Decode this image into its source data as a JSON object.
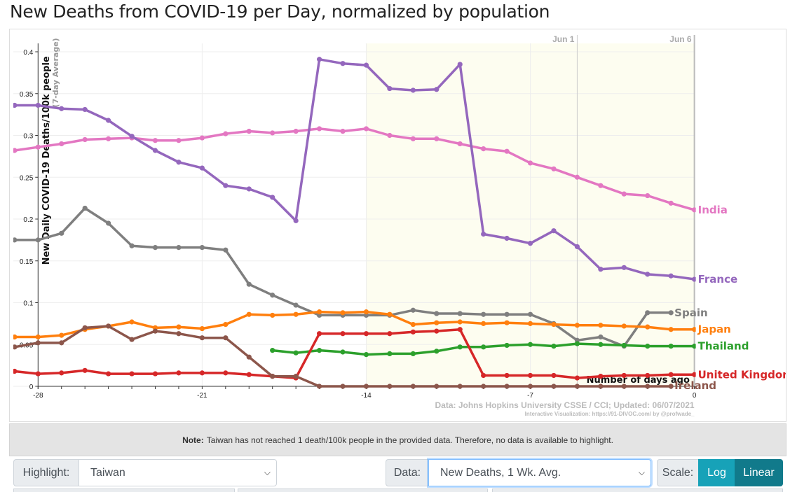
{
  "page": {
    "title": "New Deaths from COVID-19 per Day, normalized by population"
  },
  "chart_data": {
    "type": "line",
    "ylabel": "New Daily COVID-19 Deaths/100k people",
    "ylabel_sub": "(7-day Average)",
    "xlabel": "Number of days ago",
    "xlim": [
      -28,
      0
    ],
    "ylim": [
      0,
      0.4
    ],
    "x_ticks": [
      -28,
      -21,
      -14,
      -7,
      0
    ],
    "y_ticks": [
      0,
      0.05,
      0.1,
      0.15,
      0.2,
      0.25,
      0.3,
      0.35,
      0.4
    ],
    "y_tick_labels": [
      "0",
      "0.05",
      "0.1",
      "0.15",
      "0.2",
      "0.25",
      "0.3",
      "0.35",
      "0.4"
    ],
    "date_markers": [
      {
        "x": -5,
        "label": "Jun 1"
      },
      {
        "x": 0,
        "label": "Jun 6"
      }
    ],
    "highlight_region": [
      -14,
      0
    ],
    "source": "Data: Johns Hopkins University CSSE / CCI; Updated: 06/07/2021",
    "credit": "Interactive Visualization: https://91-DIVOC.com/ by @profwade_",
    "series": [
      {
        "name": "India",
        "color": "#e377c2",
        "x": [
          -29,
          -28,
          -27,
          -26,
          -25,
          -24,
          -23,
          -22,
          -21,
          -20,
          -19,
          -18,
          -17,
          -16,
          -15,
          -14,
          -13,
          -12,
          -11,
          -10,
          -9,
          -8,
          -7,
          -6,
          -5,
          -4,
          -3,
          -2,
          -1,
          0
        ],
        "y": [
          0.282,
          0.286,
          0.29,
          0.295,
          0.296,
          0.297,
          0.294,
          0.294,
          0.297,
          0.302,
          0.305,
          0.303,
          0.305,
          0.308,
          0.305,
          0.308,
          0.3,
          0.296,
          0.296,
          0.29,
          0.284,
          0.281,
          0.267,
          0.26,
          0.25,
          0.24,
          0.23,
          0.228,
          0.219,
          0.211
        ]
      },
      {
        "name": "France",
        "color": "#9467bd",
        "x": [
          -29,
          -28,
          -27,
          -26,
          -25,
          -24,
          -23,
          -22,
          -21,
          -20,
          -19,
          -18,
          -17,
          -16,
          -15,
          -14,
          -13,
          -12,
          -11,
          -10,
          -9,
          -8,
          -7,
          -6,
          -5,
          -4,
          -3,
          -2,
          -1,
          0
        ],
        "y": [
          0.336,
          0.336,
          0.332,
          0.331,
          0.318,
          0.299,
          0.282,
          0.268,
          0.261,
          0.24,
          0.236,
          0.226,
          0.198,
          0.391,
          0.386,
          0.384,
          0.356,
          0.354,
          0.355,
          0.385,
          0.182,
          0.177,
          0.171,
          0.186,
          0.167,
          0.14,
          0.142,
          0.134,
          0.132,
          0.128
        ]
      },
      {
        "name": "Spain",
        "color": "#7f7f7f",
        "x": [
          -29,
          -28,
          -27,
          -26,
          -25,
          -24,
          -23,
          -22,
          -21,
          -20,
          -19,
          -18,
          -17,
          -16,
          -15,
          -14,
          -13,
          -12,
          -11,
          -10,
          -9,
          -8,
          -7,
          -6,
          -5,
          -4,
          -3,
          -2,
          -1
        ],
        "y": [
          0.175,
          0.175,
          0.183,
          0.213,
          0.195,
          0.168,
          0.166,
          0.166,
          0.166,
          0.163,
          0.122,
          0.109,
          0.097,
          0.085,
          0.085,
          0.085,
          0.085,
          0.091,
          0.087,
          0.087,
          0.086,
          0.086,
          0.086,
          0.075,
          0.055,
          0.059,
          0.048,
          0.088,
          0.088
        ]
      },
      {
        "name": "Japan",
        "color": "#ff7f0e",
        "x": [
          -29,
          -28,
          -27,
          -26,
          -25,
          -24,
          -23,
          -22,
          -21,
          -20,
          -19,
          -18,
          -17,
          -16,
          -15,
          -14,
          -13,
          -12,
          -11,
          -10,
          -9,
          -8,
          -7,
          -6,
          -5,
          -4,
          -3,
          -2,
          -1,
          0
        ],
        "y": [
          0.059,
          0.059,
          0.061,
          0.068,
          0.072,
          0.077,
          0.07,
          0.071,
          0.069,
          0.074,
          0.086,
          0.085,
          0.086,
          0.089,
          0.088,
          0.089,
          0.086,
          0.074,
          0.076,
          0.077,
          0.075,
          0.076,
          0.075,
          0.074,
          0.073,
          0.073,
          0.072,
          0.071,
          0.068,
          0.068
        ]
      },
      {
        "name": "Thailand",
        "color": "#2ca02c",
        "x": [
          -18,
          -17,
          -16,
          -15,
          -14,
          -13,
          -12,
          -11,
          -10,
          -9,
          -8,
          -7,
          -6,
          -5,
          -4,
          -3,
          -2,
          -1,
          0
        ],
        "y": [
          0.043,
          0.04,
          0.043,
          0.041,
          0.038,
          0.039,
          0.039,
          0.042,
          0.047,
          0.047,
          0.049,
          0.05,
          0.048,
          0.051,
          0.05,
          0.049,
          0.048,
          0.048,
          0.048
        ]
      },
      {
        "name": "United Kingdom",
        "color": "#d62728",
        "x": [
          -29,
          -28,
          -27,
          -26,
          -25,
          -24,
          -23,
          -22,
          -21,
          -20,
          -19,
          -18,
          -17,
          -16,
          -15,
          -14,
          -13,
          -12,
          -11,
          -10,
          -9,
          -8,
          -7,
          -6,
          -5,
          -4,
          -3,
          -2,
          -1,
          0
        ],
        "y": [
          0.018,
          0.015,
          0.016,
          0.019,
          0.015,
          0.015,
          0.015,
          0.016,
          0.016,
          0.016,
          0.014,
          0.012,
          0.01,
          0.063,
          0.063,
          0.063,
          0.063,
          0.065,
          0.066,
          0.068,
          0.013,
          0.013,
          0.013,
          0.013,
          0.01,
          0.012,
          0.013,
          0.013,
          0.014,
          0.014
        ]
      },
      {
        "name": "Ireland",
        "color": "#8c564b",
        "x": [
          -29,
          -28,
          -27,
          -26,
          -25,
          -24,
          -23,
          -22,
          -21,
          -20,
          -19,
          -18,
          -17,
          -16,
          -15,
          -14,
          -13,
          -12,
          -11,
          -10,
          -9,
          -8,
          -7,
          -6,
          -5,
          -4,
          -3,
          -2,
          -1
        ],
        "y": [
          0.047,
          0.052,
          0.052,
          0.07,
          0.072,
          0.056,
          0.066,
          0.063,
          0.058,
          0.058,
          0.035,
          0.012,
          0.012,
          0.0,
          0.0,
          0.0,
          0.0,
          0.0,
          0.0,
          0.0,
          0.0,
          0.0,
          0.0,
          0.0,
          0.0,
          0.0,
          0.0,
          0.0,
          0.0
        ]
      }
    ]
  },
  "note": {
    "bold": "Note:",
    "text": "Taiwan has not reached 1 death/100k people in the provided data. Therefore, no data is available to highlight."
  },
  "controls": {
    "highlight_label": "Highlight:",
    "highlight_value": "Taiwan",
    "data_label": "Data:",
    "data_value": "New Deaths, 1 Wk. Avg.",
    "scale_label": "Scale:",
    "scale_log": "Log",
    "scale_linear": "Linear",
    "colors": {
      "log": "#17a2b8",
      "linear": "#117a8b"
    }
  }
}
